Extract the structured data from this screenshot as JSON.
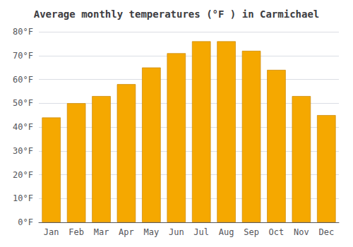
{
  "chart_data": {
    "type": "bar",
    "title": "Average monthly temperatures (°F ) in Carmichael",
    "categories": [
      "Jan",
      "Feb",
      "Mar",
      "Apr",
      "May",
      "Jun",
      "Jul",
      "Aug",
      "Sep",
      "Oct",
      "Nov",
      "Dec"
    ],
    "values": [
      44,
      50,
      53,
      58,
      65,
      71,
      76,
      76,
      72,
      64,
      53,
      45
    ],
    "color": "#F5A800",
    "ylim": [
      0,
      80
    ],
    "yticks": [
      {
        "value": 0,
        "label": "0°F"
      },
      {
        "value": 10,
        "label": "10°F"
      },
      {
        "value": 20,
        "label": "20°F"
      },
      {
        "value": 30,
        "label": "30°F"
      },
      {
        "value": 40,
        "label": "40°F"
      },
      {
        "value": 50,
        "label": "50°F"
      },
      {
        "value": 60,
        "label": "60°F"
      },
      {
        "value": 70,
        "label": "70°F"
      },
      {
        "value": 80,
        "label": "80°F"
      }
    ],
    "grid": true
  }
}
